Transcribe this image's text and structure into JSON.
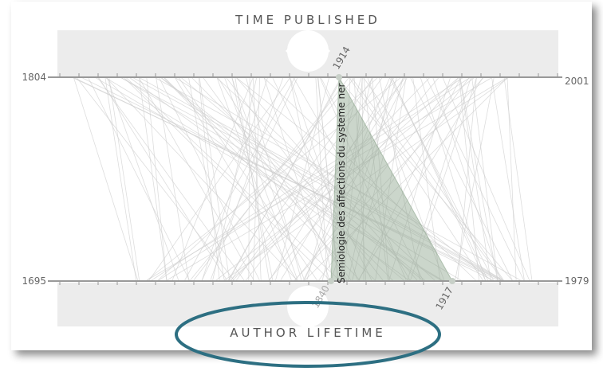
{
  "view": {
    "top_axis": {
      "title": "TIME PUBLISHED",
      "min_label": "1804",
      "max_label": "2001",
      "selected_label": "1914"
    },
    "bottom_axis": {
      "title": "AUTHOR LIFETIME",
      "min_label": "1695",
      "max_label": "1979",
      "birth_label": "1840",
      "death_label": "1917"
    },
    "selected_book": "Semiologie des affections du systeme ner"
  }
}
